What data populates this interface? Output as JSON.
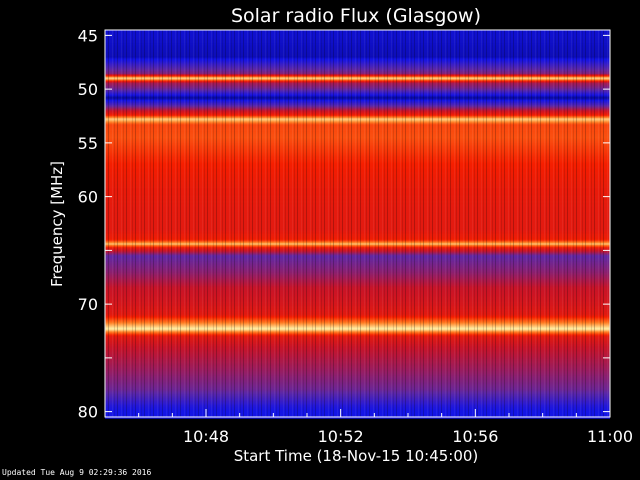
{
  "chart_data": {
    "type": "heatmap",
    "title": "Solar radio Flux (Glasgow)",
    "ylabel": "Frequency [MHz]",
    "xlabel": "Start Time (18-Nov-15 10:45:00)",
    "ylim": [
      44.5,
      80.5
    ],
    "y_inverted": true,
    "yticks": [
      45,
      50,
      55,
      60,
      65,
      70,
      75,
      80
    ],
    "ytick_labels": [
      "45",
      "50",
      "55",
      "60",
      "",
      "70",
      "",
      "80"
    ],
    "x_start": "10:45:00",
    "x_end": "11:00:00",
    "xticks_minutes": [
      3,
      7,
      11,
      15
    ],
    "xtick_labels": [
      "10:48",
      "10:52",
      "10:56",
      "11:00"
    ],
    "colormap": "blue-red-yellow",
    "intensity_by_frequency": [
      {
        "mhz": 45.0,
        "level": 0.1
      },
      {
        "mhz": 47.0,
        "level": 0.08
      },
      {
        "mhz": 48.6,
        "level": 0.35
      },
      {
        "mhz": 49.0,
        "level": 1.0
      },
      {
        "mhz": 49.4,
        "level": 0.4
      },
      {
        "mhz": 50.0,
        "level": 0.3
      },
      {
        "mhz": 50.8,
        "level": 0.05
      },
      {
        "mhz": 51.5,
        "level": 0.25
      },
      {
        "mhz": 52.4,
        "level": 0.6
      },
      {
        "mhz": 52.8,
        "level": 0.95
      },
      {
        "mhz": 53.3,
        "level": 0.7
      },
      {
        "mhz": 54.5,
        "level": 0.72
      },
      {
        "mhz": 55.5,
        "level": 0.68
      },
      {
        "mhz": 57.0,
        "level": 0.62
      },
      {
        "mhz": 59.0,
        "level": 0.58
      },
      {
        "mhz": 61.0,
        "level": 0.56
      },
      {
        "mhz": 63.0,
        "level": 0.55
      },
      {
        "mhz": 64.0,
        "level": 0.6
      },
      {
        "mhz": 64.4,
        "level": 0.92
      },
      {
        "mhz": 64.8,
        "level": 0.55
      },
      {
        "mhz": 65.5,
        "level": 0.28
      },
      {
        "mhz": 67.0,
        "level": 0.35
      },
      {
        "mhz": 68.5,
        "level": 0.45
      },
      {
        "mhz": 70.0,
        "level": 0.5
      },
      {
        "mhz": 71.0,
        "level": 0.55
      },
      {
        "mhz": 72.3,
        "level": 1.0
      },
      {
        "mhz": 73.0,
        "level": 0.55
      },
      {
        "mhz": 74.0,
        "level": 0.45
      },
      {
        "mhz": 76.0,
        "level": 0.38
      },
      {
        "mhz": 78.0,
        "level": 0.3
      },
      {
        "mhz": 79.5,
        "level": 0.15
      },
      {
        "mhz": 80.0,
        "level": 0.12
      }
    ]
  },
  "footer": {
    "updated": "Updated Tue Aug  9 02:29:36 2016"
  }
}
